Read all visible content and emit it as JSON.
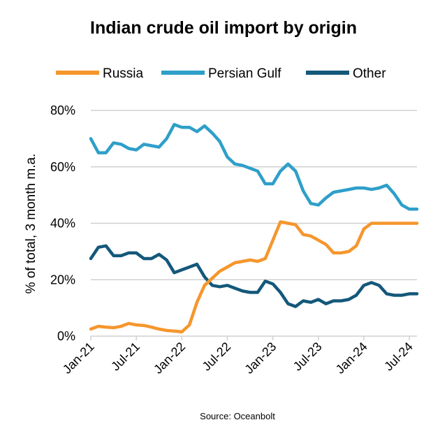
{
  "chart_data": {
    "type": "line",
    "title": "Indian crude oil import by origin",
    "ylabel": "% of total, 3 month m.a.",
    "xlabel": "",
    "source": "Source: Oceanbolt",
    "ylim": [
      0,
      80
    ],
    "y_ticks": [
      "0%",
      "20%",
      "40%",
      "60%",
      "80%"
    ],
    "x_ticks": [
      "Jan-21",
      "Jul-21",
      "Jan-22",
      "Jul-22",
      "Jan-23",
      "Jul-23",
      "Jan-24",
      "Jul-24"
    ],
    "grid": true,
    "legend_position": "top",
    "x": [
      "Jan-21",
      "Feb-21",
      "Mar-21",
      "Apr-21",
      "May-21",
      "Jun-21",
      "Jul-21",
      "Aug-21",
      "Sep-21",
      "Oct-21",
      "Nov-21",
      "Dec-21",
      "Jan-22",
      "Feb-22",
      "Mar-22",
      "Apr-22",
      "May-22",
      "Jun-22",
      "Jul-22",
      "Aug-22",
      "Sep-22",
      "Oct-22",
      "Nov-22",
      "Dec-22",
      "Jan-23",
      "Feb-23",
      "Mar-23",
      "Apr-23",
      "May-23",
      "Jun-23",
      "Jul-23",
      "Aug-23",
      "Sep-23",
      "Oct-23",
      "Nov-23",
      "Dec-23",
      "Jan-24",
      "Feb-24",
      "Mar-24",
      "Apr-24",
      "May-24",
      "Jun-24",
      "Jul-24",
      "Aug-24"
    ],
    "series": [
      {
        "name": "Russia",
        "color": "#f5962d",
        "values": [
          2.5,
          3.5,
          3.2,
          3.0,
          3.5,
          4.5,
          4.0,
          3.8,
          3.2,
          2.5,
          2.0,
          1.8,
          1.5,
          4.0,
          12.0,
          18.0,
          20.5,
          23.0,
          24.5,
          26.0,
          26.5,
          27.0,
          26.5,
          27.5,
          34.0,
          40.5,
          40.0,
          39.5,
          36.0,
          35.5,
          34.0,
          32.5,
          29.5,
          29.5,
          30.0,
          32.0,
          38.0,
          40.0,
          40.0,
          40.0,
          40.0,
          40.0,
          40.0,
          40.0
        ]
      },
      {
        "name": "Persian Gulf",
        "color": "#2e9fc9",
        "values": [
          70.0,
          65.0,
          65.0,
          68.5,
          68.0,
          66.5,
          66.0,
          68.0,
          67.5,
          67.0,
          70.0,
          75.0,
          74.0,
          74.0,
          72.5,
          74.5,
          72.0,
          69.0,
          63.5,
          61.0,
          60.5,
          59.5,
          58.5,
          54.0,
          54.0,
          58.5,
          61.0,
          58.5,
          51.5,
          47.0,
          46.5,
          49.0,
          51.0,
          51.5,
          52.0,
          52.5,
          52.5,
          52.0,
          52.5,
          53.5,
          50.5,
          46.5,
          45.0,
          45.0
        ]
      },
      {
        "name": "Other",
        "color": "#14587a",
        "values": [
          27.5,
          31.5,
          32.0,
          28.5,
          28.5,
          29.5,
          29.5,
          27.5,
          27.5,
          29.0,
          27.0,
          22.5,
          23.5,
          24.5,
          25.5,
          21.0,
          18.0,
          17.5,
          18.0,
          17.0,
          16.0,
          15.5,
          15.5,
          19.5,
          18.5,
          15.5,
          11.5,
          10.5,
          12.5,
          12.0,
          13.0,
          11.5,
          12.5,
          12.5,
          13.0,
          14.5,
          18.0,
          19.0,
          18.0,
          15.0,
          14.5,
          14.5,
          15.0,
          15.0
        ]
      }
    ]
  }
}
